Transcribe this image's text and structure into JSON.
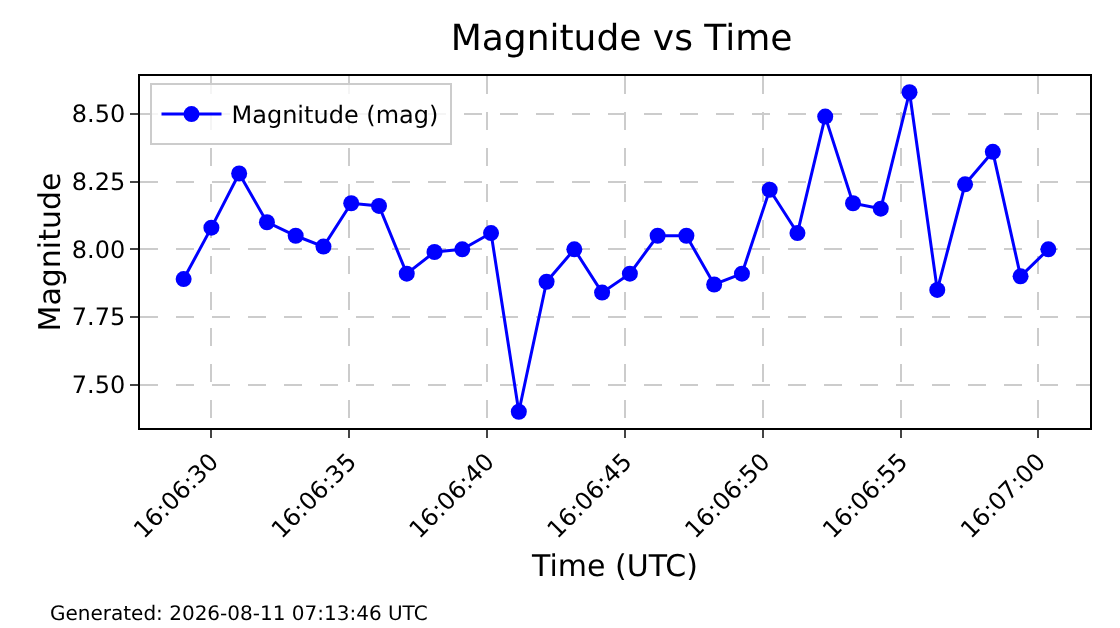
{
  "chart_data": {
    "type": "line",
    "title": "Magnitude vs Time",
    "xlabel": "Time (UTC)",
    "ylabel": "Magnitude",
    "annotations": [
      "Generated: 2026-08-11 07:13:46 UTC"
    ],
    "x": [
      16.10805,
      16.10833,
      16.10861,
      16.10889,
      16.10918,
      16.10946,
      16.10974,
      16.11002,
      16.1103,
      16.11058,
      16.11086,
      16.11115,
      16.11143,
      16.11171,
      16.11199,
      16.11227,
      16.11255,
      16.11283,
      16.11312,
      16.1134,
      16.11368,
      16.11396,
      16.11424,
      16.11452,
      16.1148,
      16.11508,
      16.11537,
      16.11565,
      16.11593,
      16.11621,
      16.11649,
      16.11677
    ],
    "series": [
      {
        "name": "Magnitude (mag)",
        "color": "#0000ff",
        "values": [
          7.89,
          8.08,
          8.28,
          8.1,
          8.05,
          8.01,
          8.17,
          8.16,
          7.91,
          7.99,
          8.0,
          8.06,
          7.4,
          7.88,
          8.0,
          7.84,
          7.91,
          8.05,
          8.05,
          7.87,
          7.91,
          8.22,
          8.06,
          8.49,
          8.17,
          8.15,
          8.58,
          7.85,
          8.24,
          8.36,
          7.9,
          8.0
        ]
      }
    ],
    "xlim": [
      16.10761,
      16.11719
    ],
    "xticks": [
      {
        "value": 16.10833,
        "label": "16:06:30"
      },
      {
        "value": 16.10972,
        "label": "16:06:35"
      },
      {
        "value": 16.11111,
        "label": "16:06:40"
      },
      {
        "value": 16.1125,
        "label": "16:06:45"
      },
      {
        "value": 16.11389,
        "label": "16:06:50"
      },
      {
        "value": 16.11528,
        "label": "16:06:55"
      },
      {
        "value": 16.11667,
        "label": "16:07:00"
      }
    ],
    "ylim": [
      7.34,
      8.64
    ],
    "yticks": [
      {
        "value": 7.5,
        "label": "7.50"
      },
      {
        "value": 7.75,
        "label": "7.75"
      },
      {
        "value": 8.0,
        "label": "8.00"
      },
      {
        "value": 8.25,
        "label": "8.25"
      },
      {
        "value": 8.5,
        "label": "8.50"
      }
    ],
    "grid": true,
    "legend": "top left",
    "marker": "circle",
    "line_style": "solid"
  }
}
